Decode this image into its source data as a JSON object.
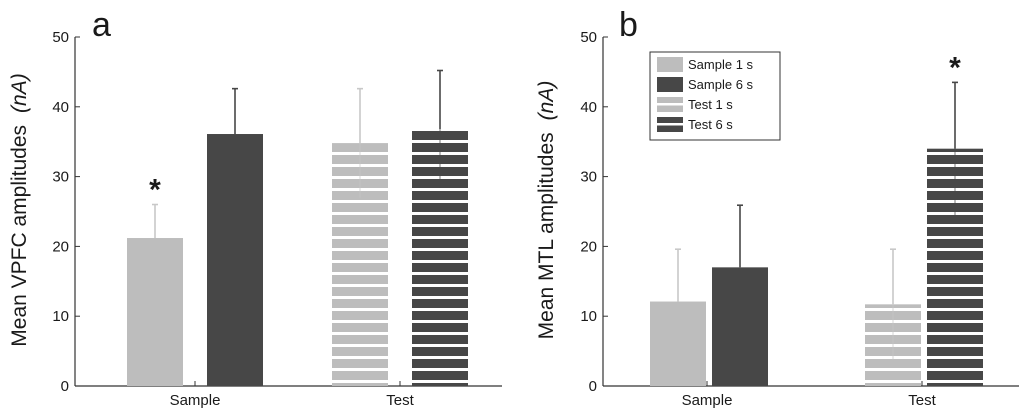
{
  "colors": {
    "light": "#bdbdbd",
    "dark": "#474747",
    "stripe": "#ffffff",
    "axis": "#333333",
    "error_light": "#c8c8c8",
    "error_dark": "#474747"
  },
  "legend": {
    "entries": [
      {
        "label": "Sample 1 s",
        "color": "light",
        "striped": false
      },
      {
        "label": "Sample 6 s",
        "color": "dark",
        "striped": false
      },
      {
        "label": "Test 1 s",
        "color": "light",
        "striped": true
      },
      {
        "label": "Test 6 s",
        "color": "dark",
        "striped": true
      }
    ]
  },
  "chart_data": [
    {
      "type": "bar",
      "panel_label": "a",
      "ylabel": "Mean VPFC amplitudes",
      "ylabel_unit": "(nA)",
      "categories": [
        "Sample",
        "Test"
      ],
      "ylim": [
        0,
        50
      ],
      "yticks": [
        "0",
        "10",
        "20",
        "30",
        "40",
        "50"
      ],
      "bars": [
        {
          "category": "Sample",
          "color": "light",
          "striped": false,
          "value": 21.2,
          "error": 4.8,
          "significant": true
        },
        {
          "category": "Sample",
          "color": "dark",
          "striped": false,
          "value": 36.1,
          "error": 6.5,
          "significant": false
        },
        {
          "category": "Test",
          "color": "light",
          "striped": true,
          "value": 34.8,
          "error": 7.8,
          "significant": false
        },
        {
          "category": "Test",
          "color": "dark",
          "striped": true,
          "value": 36.8,
          "error": 8.4,
          "significant": false
        }
      ],
      "significance_marker": "*",
      "legend": false
    },
    {
      "type": "bar",
      "panel_label": "b",
      "ylabel": "Mean MTL amplitudes",
      "ylabel_unit": "(nA)",
      "categories": [
        "Sample",
        "Test"
      ],
      "ylim": [
        0,
        50
      ],
      "yticks": [
        "0",
        "10",
        "20",
        "30",
        "40",
        "50"
      ],
      "bars": [
        {
          "category": "Sample",
          "color": "light",
          "striped": false,
          "value": 12.1,
          "error": 7.5,
          "significant": false
        },
        {
          "category": "Sample",
          "color": "dark",
          "striped": false,
          "value": 17.0,
          "error": 8.9,
          "significant": false
        },
        {
          "category": "Test",
          "color": "light",
          "striped": true,
          "value": 11.7,
          "error": 7.9,
          "significant": false
        },
        {
          "category": "Test",
          "color": "dark",
          "striped": true,
          "value": 34.0,
          "error": 9.5,
          "significant": true
        }
      ],
      "significance_marker": "*",
      "legend": true,
      "legend_position": "top-center"
    }
  ]
}
